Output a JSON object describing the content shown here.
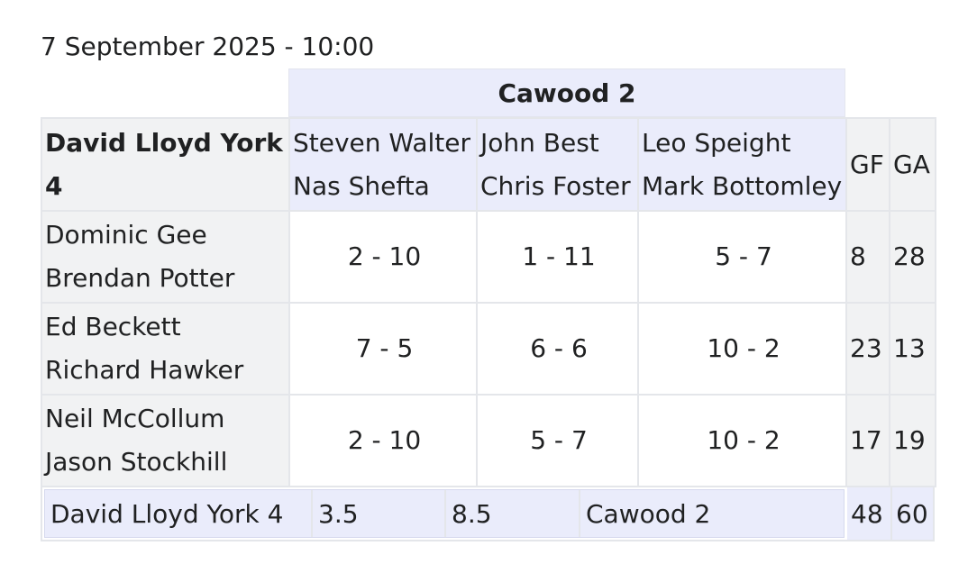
{
  "match": {
    "datetime": "7 September 2025 - 10:00",
    "home_team": "David Lloyd York 4",
    "away_team": "Cawood 2"
  },
  "columns": {
    "gf": "GF",
    "ga": "GA"
  },
  "away_pairs": [
    {
      "p1": "Steven Walter",
      "p2": "Nas Shefta"
    },
    {
      "p1": "John Best",
      "p2": "Chris Foster"
    },
    {
      "p1": "Leo Speight",
      "p2": "Mark Bottomley"
    }
  ],
  "rows": [
    {
      "p1": "Dominic Gee",
      "p2": "Brendan Potter",
      "scores": [
        "2 - 10",
        "1 - 11",
        "5 - 7"
      ],
      "gf": "8",
      "ga": "28"
    },
    {
      "p1": "Ed Beckett",
      "p2": "Richard Hawker",
      "scores": [
        "7 - 5",
        "6 - 6",
        "10 - 2"
      ],
      "gf": "23",
      "ga": "13"
    },
    {
      "p1": "Neil McCollum",
      "p2": "Jason Stockhill",
      "scores": [
        "2 - 10",
        "5 - 7",
        "10 - 2"
      ],
      "gf": "17",
      "ga": "19"
    }
  ],
  "summary": {
    "home_team": "David Lloyd York 4",
    "home_points": "3.5",
    "away_points": "8.5",
    "away_team": "Cawood 2",
    "total_gf": "48",
    "total_ga": "60"
  },
  "colors": {
    "header_blue": "#eaecfb",
    "header_grey": "#f1f2f3",
    "border": "#e4e6ea"
  }
}
